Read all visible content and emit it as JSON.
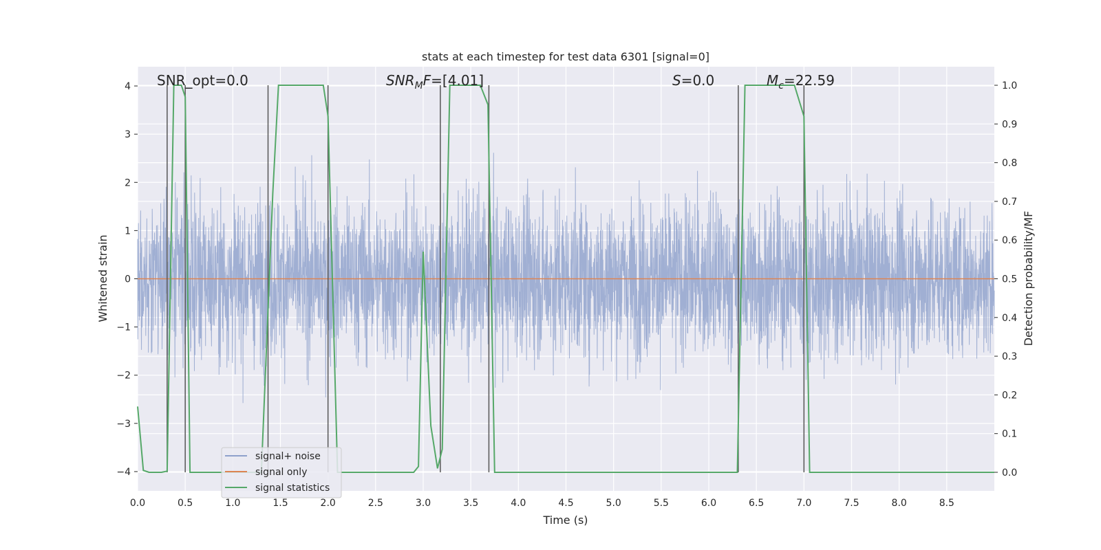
{
  "chart_data": {
    "type": "line",
    "title": "stats at each timestep for test data 6301 [signal=0]",
    "xlabel": "Time (s)",
    "ylabel": "Whitened strain",
    "y2label": "Detection probability/MF",
    "xlim": [
      0.0,
      9.0
    ],
    "ylim": [
      -4.4,
      4.4
    ],
    "y2lim": [
      -0.048,
      1.048
    ],
    "xticks": [
      0.0,
      0.5,
      1.0,
      1.5,
      2.0,
      2.5,
      3.0,
      3.5,
      4.0,
      4.5,
      5.0,
      5.5,
      6.0,
      6.5,
      7.0,
      7.5,
      8.0,
      8.5
    ],
    "xtick_labels": [
      "0.0",
      "0.5",
      "1.0",
      "1.5",
      "2.0",
      "2.5",
      "3.0",
      "3.5",
      "4.0",
      "4.5",
      "5.0",
      "5.5",
      "6.0",
      "6.5",
      "7.0",
      "7.5",
      "8.0",
      "8.5"
    ],
    "yticks": [
      -4,
      -3,
      -2,
      -1,
      0,
      1,
      2,
      3,
      4
    ],
    "ytick_labels": [
      "−4",
      "−3",
      "−2",
      "−1",
      "0",
      "1",
      "2",
      "3",
      "4"
    ],
    "y2ticks": [
      0.0,
      0.1,
      0.2,
      0.3,
      0.4,
      0.5,
      0.6,
      0.7,
      0.8,
      0.9,
      1.0
    ],
    "y2tick_labels": [
      "0.0",
      "0.1",
      "0.2",
      "0.3",
      "0.4",
      "0.5",
      "0.6",
      "0.7",
      "0.8",
      "0.9",
      "1.0"
    ],
    "grid": true,
    "legend_position": "lower-left",
    "annotations": [
      {
        "text": "SNR_opt=0.0",
        "x": 0.2
      },
      {
        "text": "SNR",
        "sub": "M",
        "after": "F=[4.01]",
        "italic_part": "SNR_M F",
        "x": 2.6
      },
      {
        "text": "S",
        "after": "=0.0",
        "italic_part": "S",
        "x": 5.6
      },
      {
        "text": "M",
        "sub": "c",
        "after": "=22.59",
        "italic_part": "M_c",
        "x": 6.6
      }
    ],
    "series": [
      {
        "name": "signal+ noise",
        "color": "#8da0cb",
        "axis": "left",
        "kind": "noise",
        "amplitude_envelope": [
          -3.9,
          3.7
        ]
      },
      {
        "name": "signal only",
        "color": "#dd8452",
        "axis": "left",
        "x": [
          0.0,
          9.0
        ],
        "y": [
          0.0,
          0.0
        ]
      },
      {
        "name": "signal statistics",
        "color": "#55a868",
        "axis": "right",
        "x": [
          0.0,
          0.06,
          0.12,
          0.25,
          0.31,
          0.38,
          0.46,
          0.5,
          0.55,
          0.7,
          1.3,
          1.42,
          1.48,
          1.95,
          2.0,
          2.1,
          2.15,
          2.3,
          2.9,
          2.95,
          3.0,
          3.08,
          3.15,
          3.2,
          3.28,
          3.6,
          3.68,
          3.75,
          3.82,
          4.5,
          6.3,
          6.38,
          6.9,
          7.0,
          7.06,
          7.15,
          8.5,
          9.0
        ],
        "y": [
          0.17,
          0.005,
          0.0,
          0.0,
          0.003,
          1.0,
          1.0,
          0.97,
          0.0,
          0.0,
          0.0,
          0.72,
          1.0,
          1.0,
          0.92,
          0.0,
          0.0,
          0.0,
          0.0,
          0.015,
          0.57,
          0.12,
          0.01,
          0.06,
          1.0,
          1.0,
          0.95,
          0.0,
          0.0,
          0.0,
          0.0,
          1.0,
          1.0,
          0.92,
          0.0,
          0.0,
          0.0,
          0.0
        ]
      }
    ],
    "vertical_markers": [
      0.31,
      0.5,
      1.37,
      2.0,
      3.18,
      3.69,
      6.31,
      7.0
    ],
    "legend_entries": [
      "signal+ noise",
      "signal only",
      "signal statistics"
    ]
  }
}
